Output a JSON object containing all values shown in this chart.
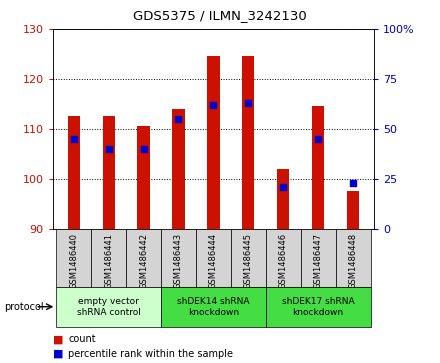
{
  "title": "GDS5375 / ILMN_3242130",
  "samples": [
    "GSM1486440",
    "GSM1486441",
    "GSM1486442",
    "GSM1486443",
    "GSM1486444",
    "GSM1486445",
    "GSM1486446",
    "GSM1486447",
    "GSM1486448"
  ],
  "count_values": [
    112.5,
    112.5,
    110.5,
    114.0,
    124.5,
    124.5,
    102.0,
    114.5,
    97.5
  ],
  "percentile_values": [
    45.0,
    40.0,
    40.0,
    55.0,
    62.0,
    63.0,
    21.0,
    45.0,
    23.0
  ],
  "ylim_left": [
    90,
    130
  ],
  "ylim_right": [
    0,
    100
  ],
  "yticks_left": [
    90,
    100,
    110,
    120,
    130
  ],
  "yticks_right": [
    0,
    25,
    50,
    75,
    100
  ],
  "ytick_labels_right": [
    "0",
    "25",
    "50",
    "75",
    "100%"
  ],
  "bar_color": "#cc1100",
  "dot_color": "#0000cc",
  "bar_width": 0.35,
  "groups": [
    {
      "label": "empty vector\nshRNA control",
      "start": 0,
      "end": 3,
      "color": "#ccffcc"
    },
    {
      "label": "shDEK14 shRNA\nknockdown",
      "start": 3,
      "end": 6,
      "color": "#44dd44"
    },
    {
      "label": "shDEK17 shRNA\nknockdown",
      "start": 6,
      "end": 9,
      "color": "#44dd44"
    }
  ],
  "protocol_label": "protocol",
  "legend_count_label": "count",
  "legend_percentile_label": "percentile rank within the sample",
  "background_color": "#ffffff",
  "plot_bg_color": "#ffffff",
  "tick_color_left": "#cc1100",
  "tick_color_right": "#0000cc"
}
